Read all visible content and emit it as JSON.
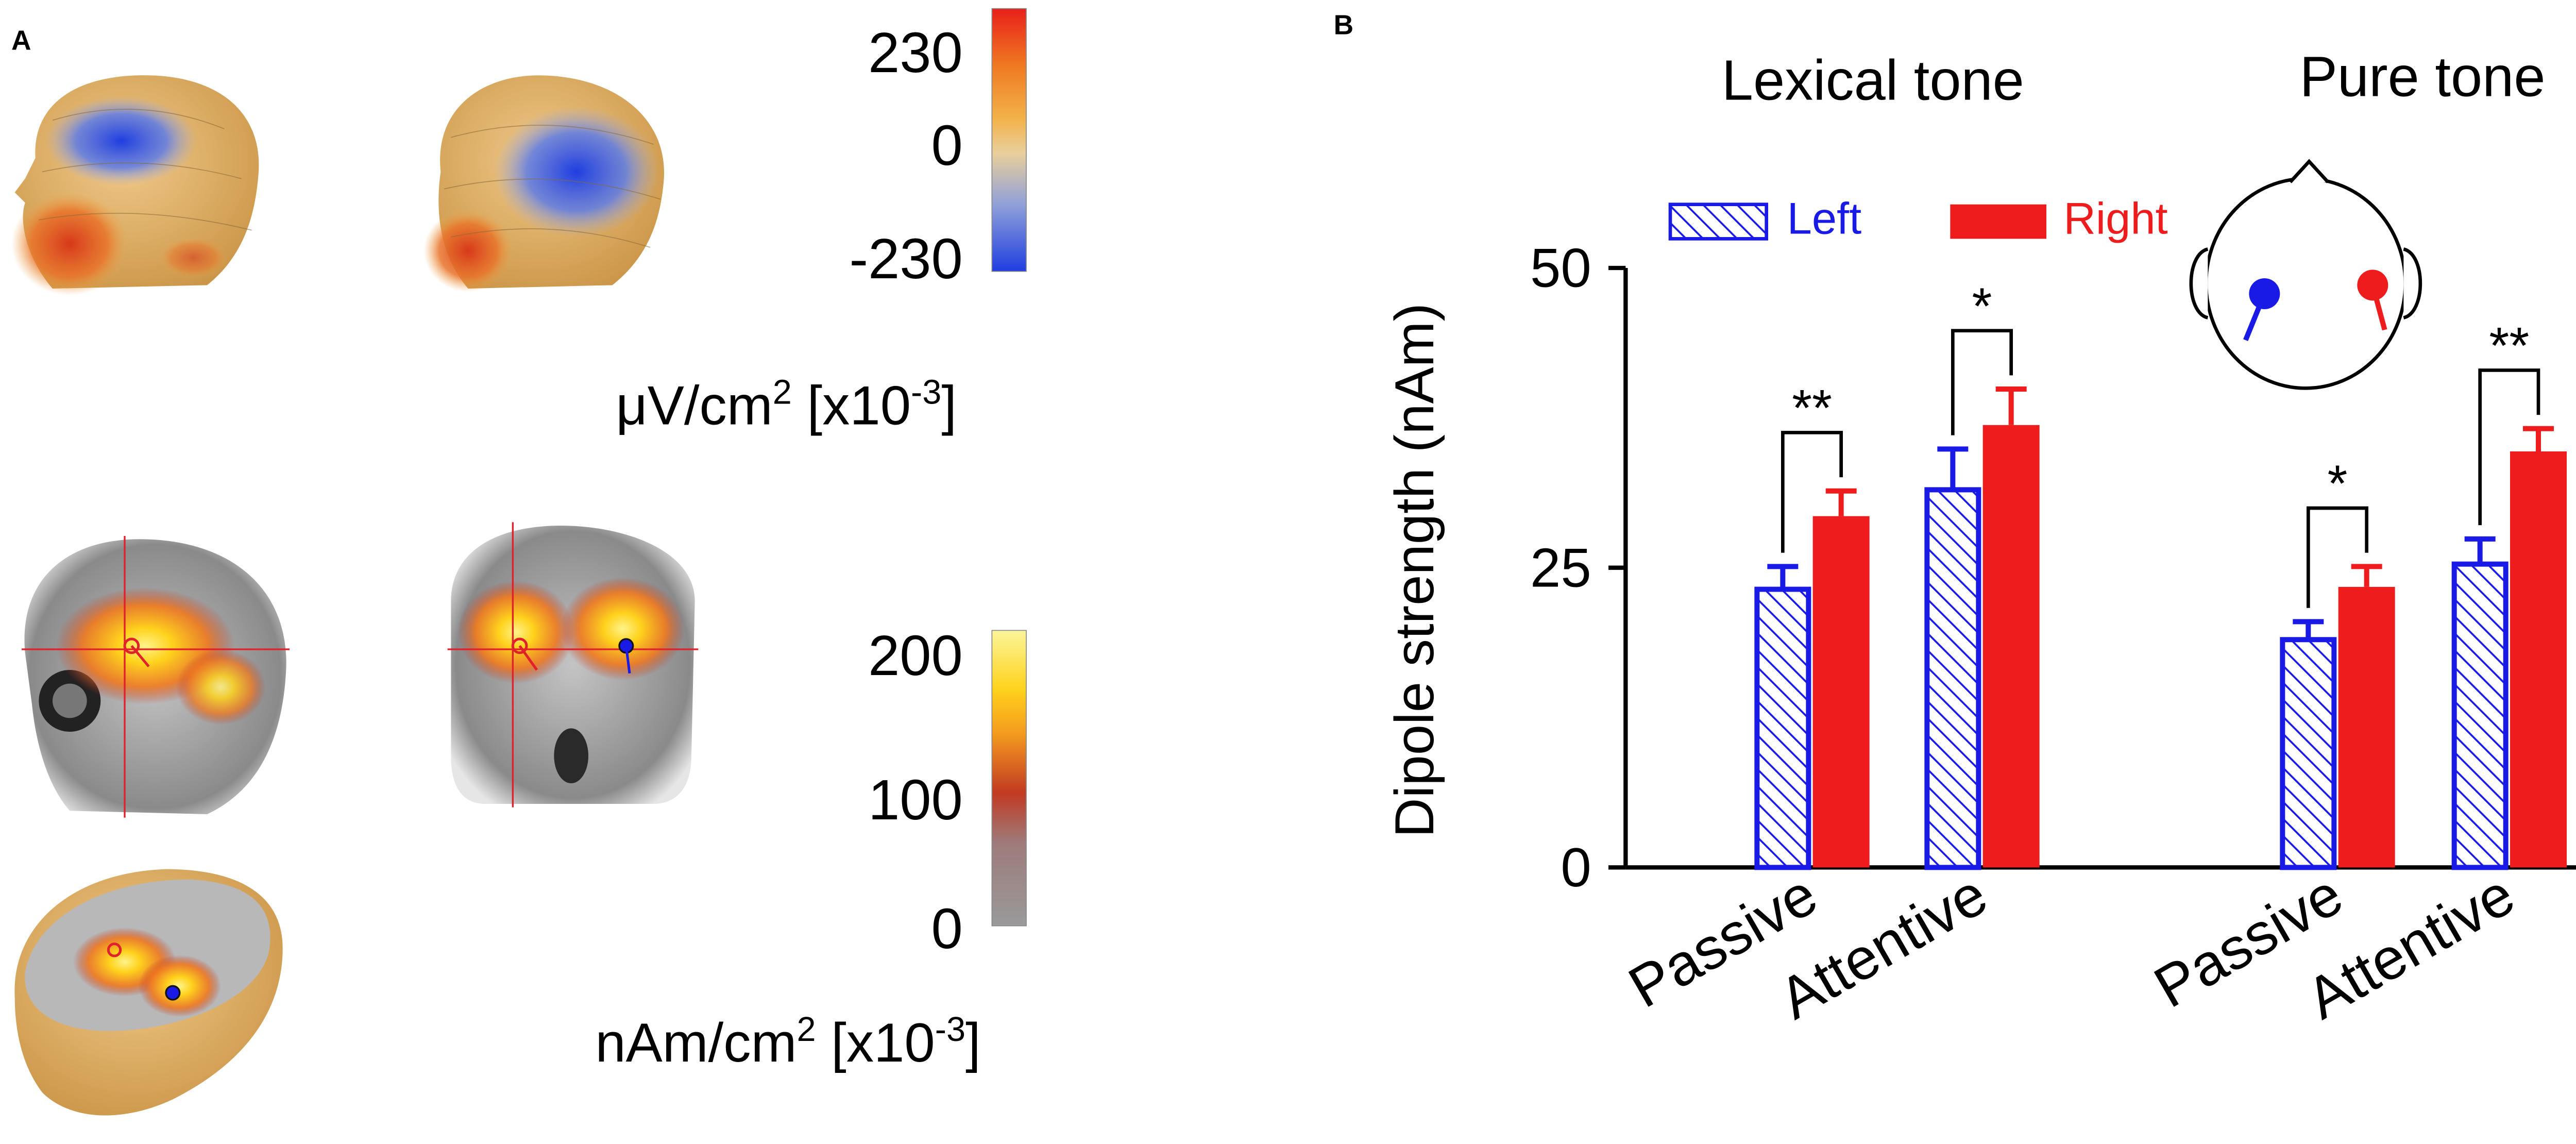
{
  "panel_a": {
    "label": "A",
    "scalp_colorbar": {
      "ticks": [
        "230",
        "0",
        "-230"
      ],
      "unit_main": "μV/cm",
      "unit_sup": "2",
      "unit_rest": " [x10",
      "unit_exp": "-3",
      "unit_end": "]"
    },
    "source_colorbar": {
      "ticks": [
        "200",
        "100",
        "0"
      ],
      "unit_main": "nAm/cm",
      "unit_sup": "2",
      "unit_rest": " [x10",
      "unit_exp": "-3",
      "unit_end": "]"
    },
    "colors": {
      "scalp_skin": "#e2b26a",
      "negative": "#2f5be8",
      "positive": "#e0461e",
      "activation": "#ffd21c",
      "mri_gray": "#9a9a9a",
      "crosshair": "#e0202a"
    }
  },
  "panel_b": {
    "label": "B",
    "legend": {
      "left": "Left",
      "right": "Right"
    },
    "colors": {
      "left": "#1a1ae6",
      "right": "#ee1c1c"
    }
  },
  "chart_data": {
    "type": "bar",
    "ylabel": "Dipole strength (nAm)",
    "ylim": [
      0,
      50
    ],
    "yticks": [
      0,
      25,
      50
    ],
    "groups": [
      {
        "title": "Lexical tone",
        "conditions": [
          {
            "label": "Passive",
            "left": 23.2,
            "left_err": 1.9,
            "right": 29.3,
            "right_err": 2.1,
            "sig": "**"
          },
          {
            "label": "Attentive",
            "left": 31.5,
            "left_err": 3.4,
            "right": 36.9,
            "right_err": 3.0,
            "sig": "*"
          }
        ]
      },
      {
        "title": "Pure tone",
        "conditions": [
          {
            "label": "Passive",
            "left": 19.0,
            "left_err": 1.5,
            "right": 23.4,
            "right_err": 1.7,
            "sig": "*"
          },
          {
            "label": "Attentive",
            "left": 25.3,
            "left_err": 2.1,
            "right": 34.7,
            "right_err": 1.9,
            "sig": "**"
          }
        ]
      }
    ],
    "series": [
      {
        "name": "Left"
      },
      {
        "name": "Right"
      }
    ],
    "grid": false,
    "legend_position": "top-left"
  }
}
